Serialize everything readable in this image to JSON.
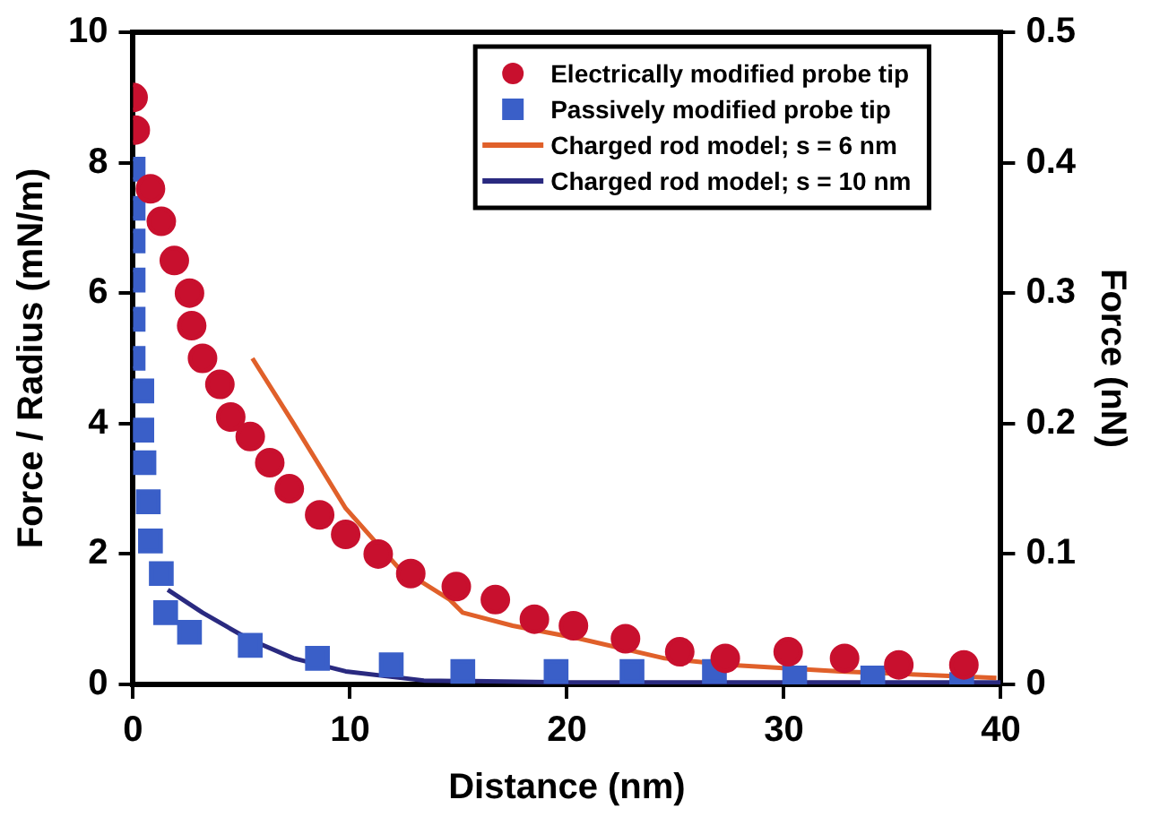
{
  "chart_data": {
    "type": "scatter",
    "xlabel": "Distance (nm)",
    "ylabel": "Force / Radius (mN/m)",
    "y2label": "Force (nN)",
    "xlim": [
      0,
      40
    ],
    "xticks": [
      0,
      10,
      20,
      30,
      40
    ],
    "ylim": [
      0,
      10
    ],
    "yticks": [
      0,
      2,
      4,
      6,
      8,
      10
    ],
    "y2lim": [
      0,
      0.5
    ],
    "y2ticks": [
      0,
      0.1,
      0.2,
      0.3,
      0.4,
      0.5
    ],
    "grid": false,
    "legend": "top right",
    "series": [
      {
        "name": "Electrically modified probe tip",
        "type": "scatter",
        "marker": "circle",
        "color": "#c8102e",
        "x": [
          0,
          0.1,
          0.8,
          1.3,
          1.9,
          2.6,
          2.7,
          3.2,
          4.0,
          4.5,
          5.4,
          6.3,
          7.2,
          8.6,
          9.8,
          11.3,
          12.8,
          14.9,
          16.7,
          18.5,
          20.3,
          22.7,
          25.2,
          27.3,
          30.2,
          32.8,
          35.3,
          38.3
        ],
        "values": [
          9.0,
          8.5,
          7.6,
          7.1,
          6.5,
          6.0,
          5.5,
          5.0,
          4.6,
          4.1,
          3.8,
          3.4,
          3.0,
          2.6,
          2.3,
          2.0,
          1.7,
          1.5,
          1.3,
          1.0,
          0.9,
          0.7,
          0.5,
          0.4,
          0.5,
          0.4,
          0.3,
          0.3
        ]
      },
      {
        "name": "Passively modified probe tip",
        "type": "scatter",
        "marker": "square",
        "color": "#3a5fc8",
        "x": [
          0,
          0,
          0,
          0,
          0,
          0,
          0.4,
          0.4,
          0.5,
          0.7,
          0.8,
          1.3,
          1.5,
          2.6,
          5.4,
          8.5,
          11.9,
          15.2,
          19.5,
          23.0,
          26.8,
          30.5,
          34.1,
          38.2
        ],
        "values": [
          7.9,
          7.3,
          6.8,
          6.2,
          5.6,
          5.0,
          4.5,
          3.9,
          3.4,
          2.8,
          2.2,
          1.7,
          1.1,
          0.8,
          0.6,
          0.4,
          0.3,
          0.2,
          0.2,
          0.2,
          0.2,
          0.1,
          0.1,
          0.0
        ]
      },
      {
        "name": "Charged rod model; s = 6 nm",
        "type": "line",
        "marker": "none",
        "line_style": "solid",
        "color": "#e0602a",
        "x": [
          5.5,
          7.4,
          9.8,
          12.2,
          14.6,
          15.2,
          17.5,
          20.6,
          24.5,
          27.5,
          32.6,
          39.8
        ],
        "values": [
          5.0,
          4.0,
          2.7,
          1.8,
          1.3,
          1.1,
          0.9,
          0.7,
          0.4,
          0.3,
          0.2,
          0.1
        ]
      },
      {
        "name": "Charged rod model; s = 10 nm",
        "type": "line",
        "marker": "none",
        "line_style": "solid",
        "color": "#2a2a80",
        "x": [
          1.6,
          3.2,
          5.3,
          7.4,
          9.8,
          13.4,
          20,
          30,
          40
        ],
        "values": [
          1.45,
          1.1,
          0.7,
          0.4,
          0.2,
          0.06,
          0.03,
          0.03,
          0.03
        ]
      }
    ]
  }
}
